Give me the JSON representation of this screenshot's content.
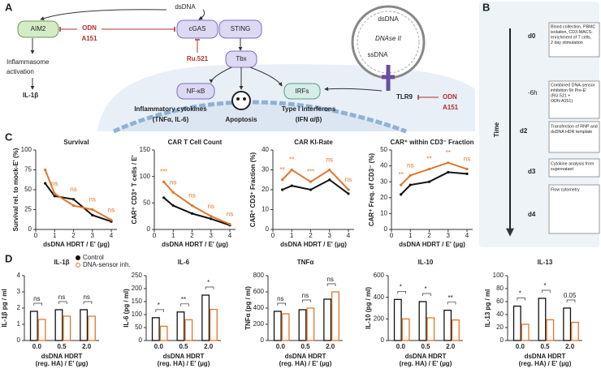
{
  "labels": {
    "a": "A",
    "b": "B",
    "c": "C",
    "d": "D"
  },
  "diagram": {
    "dsdna_top": "dsDNA",
    "aim2": "AIM2",
    "odn_left": [
      "ODN",
      "A151"
    ],
    "cgas": "cGAS",
    "sting": "STING",
    "ru521": "Ru.521",
    "tbx": "Tbx",
    "inflammasome": [
      "Inflammasome",
      "activation"
    ],
    "il1b": "IL-1β",
    "nfkb": "NF-κB",
    "irfs": "IRFs",
    "cytokines": [
      "Inflammatory cytokines",
      "(TNFα, IL-6)"
    ],
    "apoptosis": "Apoptosis",
    "interferons": [
      "Type I interferons",
      "(IFN α/β)"
    ],
    "endosome": {
      "dsdna": "dsDNA",
      "dnase": "DNAse II",
      "ssdna": "ssDNA"
    },
    "tlr9": "TLR9",
    "odn_right": [
      "ODN",
      "A151"
    ]
  },
  "timeline": {
    "axis_label": "Time",
    "ticks": [
      "d0",
      "-6h",
      "d2",
      "d3",
      "d4"
    ],
    "steps": [
      {
        "lines": [
          "Blood collection, PBMC",
          "isolation, CD3-MACS-",
          "enrichment of T cells,",
          "2 day stimulation"
        ]
      },
      {
        "lines": [
          "Combined DNA-sensor",
          "inhibition 6h Pre-E'",
          "(RU.521 +",
          "ODN A151)"
        ]
      },
      {
        "lines": [
          "Transfection of RNP and",
          "dsDNA HDR template"
        ]
      },
      {
        "lines": [
          "Cytokine analysis from",
          "supernatant"
        ]
      },
      {
        "lines": [
          "Flow cytometry"
        ]
      }
    ]
  },
  "legend": [
    {
      "name": "Control",
      "color": "#111111"
    },
    {
      "name": "DNA-sensor inh.",
      "color": "#e0772f"
    }
  ],
  "chart_data": [
    {
      "type": "line",
      "title": "Survival",
      "ylabel": "Survival rel. to mock-E' (%)",
      "xlabel": "dsDNA HDRT / E' (µg)",
      "x": [
        0.5,
        1,
        2,
        3,
        4
      ],
      "series": [
        {
          "values": [
            58,
            42,
            38,
            18,
            10
          ]
        },
        {
          "values": [
            75,
            45,
            30,
            25,
            12
          ]
        }
      ],
      "sig": [
        null,
        "ns",
        "ns",
        "ns",
        "ns"
      ],
      "xlim": [
        0,
        4.3
      ],
      "xticks": [
        0,
        1,
        2,
        3,
        4
      ],
      "ylim": [
        0,
        100
      ],
      "yticks": [
        0,
        25,
        50,
        75,
        100
      ]
    },
    {
      "type": "line",
      "title": "CAR T Cell Count",
      "ylabel": "CAR⁺ CD3⁺ T cells / E'",
      "xlabel": "dsDNA HDRT / E' (µg)",
      "x": [
        0.5,
        1,
        2,
        3,
        4
      ],
      "series": [
        {
          "values": [
            60,
            45,
            30,
            20,
            8
          ]
        },
        {
          "values": [
            90,
            70,
            45,
            25,
            10
          ]
        }
      ],
      "sig": [
        "***",
        "ns",
        "ns",
        "ns",
        "ns"
      ],
      "xlim": [
        0,
        4.3
      ],
      "xticks": [
        0,
        1,
        2,
        3,
        4
      ],
      "ylim": [
        0,
        150
      ],
      "yticks": [
        0,
        50,
        100,
        150
      ]
    },
    {
      "type": "line",
      "title": "CAR KI-Rate",
      "ylabel": "CAR⁺ CD3⁺ Fraction (%)",
      "xlabel": "dsDNA HDRT / E' (µg)",
      "x": [
        0.5,
        1,
        2,
        3,
        4
      ],
      "series": [
        {
          "values": [
            20,
            22,
            20,
            25,
            18
          ]
        },
        {
          "values": [
            25,
            30,
            24,
            30,
            20
          ]
        }
      ],
      "sig": [
        "**",
        "**",
        "***",
        "ns",
        "ns"
      ],
      "xlim": [
        0,
        4.3
      ],
      "xticks": [
        0,
        1,
        2,
        3,
        4
      ],
      "ylim": [
        0,
        40
      ],
      "yticks": [
        0,
        10,
        20,
        30,
        40
      ]
    },
    {
      "type": "line",
      "title": "CAR⁺ within CD3⁻ Fraction",
      "ylabel": "CAR⁺ Freq. of CD3⁻ (%)",
      "xlabel": "dsDNA HDRT / E' (µg)",
      "x": [
        0.5,
        1,
        2,
        3,
        4
      ],
      "series": [
        {
          "values": [
            22,
            28,
            30,
            36,
            35
          ]
        },
        {
          "values": [
            28,
            34,
            38,
            42,
            38
          ]
        }
      ],
      "sig": [
        "**",
        "ns",
        "**",
        "**",
        "ns"
      ],
      "xlim": [
        0,
        4.3
      ],
      "xticks": [
        0,
        1,
        2,
        3,
        4
      ],
      "ylim": [
        0,
        50
      ],
      "yticks": [
        0,
        10,
        20,
        30,
        40,
        50
      ]
    },
    {
      "type": "bar",
      "title": "IL-1β",
      "ylabel": "IL-1β pg / ml",
      "xlabel": [
        "dsDNA HDRT",
        "(reg. HA) / E' (µg)"
      ],
      "categories": [
        "0.0",
        "0.5",
        "2.0"
      ],
      "series": [
        {
          "values": [
            1.8,
            1.9,
            1.9
          ]
        },
        {
          "values": [
            1.3,
            1.5,
            1.5
          ]
        }
      ],
      "sig": [
        "ns",
        "ns",
        "ns"
      ],
      "ylim": [
        0,
        4
      ],
      "yticks": [
        0,
        1,
        2,
        3,
        4
      ]
    },
    {
      "type": "bar",
      "title": "IL-6",
      "ylabel": "IL-6 (pg / ml)",
      "xlabel": [
        "dsDNA HDRT",
        "(reg. HA) / E' (µg)"
      ],
      "categories": [
        "0.0",
        "0.5",
        "2.0"
      ],
      "series": [
        {
          "values": [
            88,
            110,
            175
          ]
        },
        {
          "values": [
            55,
            80,
            120
          ]
        }
      ],
      "sig": [
        "*",
        "**",
        "*"
      ],
      "ylim": [
        0,
        250
      ],
      "yticks": [
        0,
        50,
        100,
        150,
        200,
        250
      ]
    },
    {
      "type": "bar",
      "title": "TNFα",
      "ylabel": "TNFα (pg / ml)",
      "xlabel": [
        "dsDNA HDRT",
        "(reg. HA) / E' (µg)"
      ],
      "categories": [
        "0.0",
        "0.5",
        "2.0"
      ],
      "series": [
        {
          "values": [
            360,
            380,
            510
          ]
        },
        {
          "values": [
            330,
            400,
            600
          ]
        }
      ],
      "sig": [
        "ns",
        "ns",
        "ns"
      ],
      "ylim": [
        0,
        800
      ],
      "yticks": [
        0,
        200,
        400,
        600,
        800
      ]
    },
    {
      "type": "bar",
      "title": "IL-10",
      "ylabel": "IL-10 (pg / ml)",
      "xlabel": [
        "dsDNA HDRT",
        "(reg. HA) / E' (µg)"
      ],
      "categories": [
        "0.0",
        "0.5",
        "2.0"
      ],
      "series": [
        {
          "values": [
            380,
            360,
            280
          ]
        },
        {
          "values": [
            200,
            210,
            190
          ]
        }
      ],
      "sig": [
        "*",
        "*",
        "**"
      ],
      "ylim": [
        0,
        600
      ],
      "yticks": [
        0,
        200,
        400,
        600
      ]
    },
    {
      "type": "bar",
      "title": "IL-13",
      "ylabel": "IL-13 pg / ml",
      "xlabel": [
        "dsDNA HDRT",
        "(reg. HA) / E' (µg)"
      ],
      "categories": [
        "0.0",
        "0.5",
        "2.0"
      ],
      "series": [
        {
          "values": [
            53,
            65,
            50
          ]
        },
        {
          "values": [
            25,
            32,
            28
          ]
        }
      ],
      "sig": [
        "*",
        "*",
        "0.05"
      ],
      "ylim": [
        0,
        100
      ],
      "yticks": [
        0,
        20,
        40,
        60,
        80,
        100
      ]
    }
  ]
}
